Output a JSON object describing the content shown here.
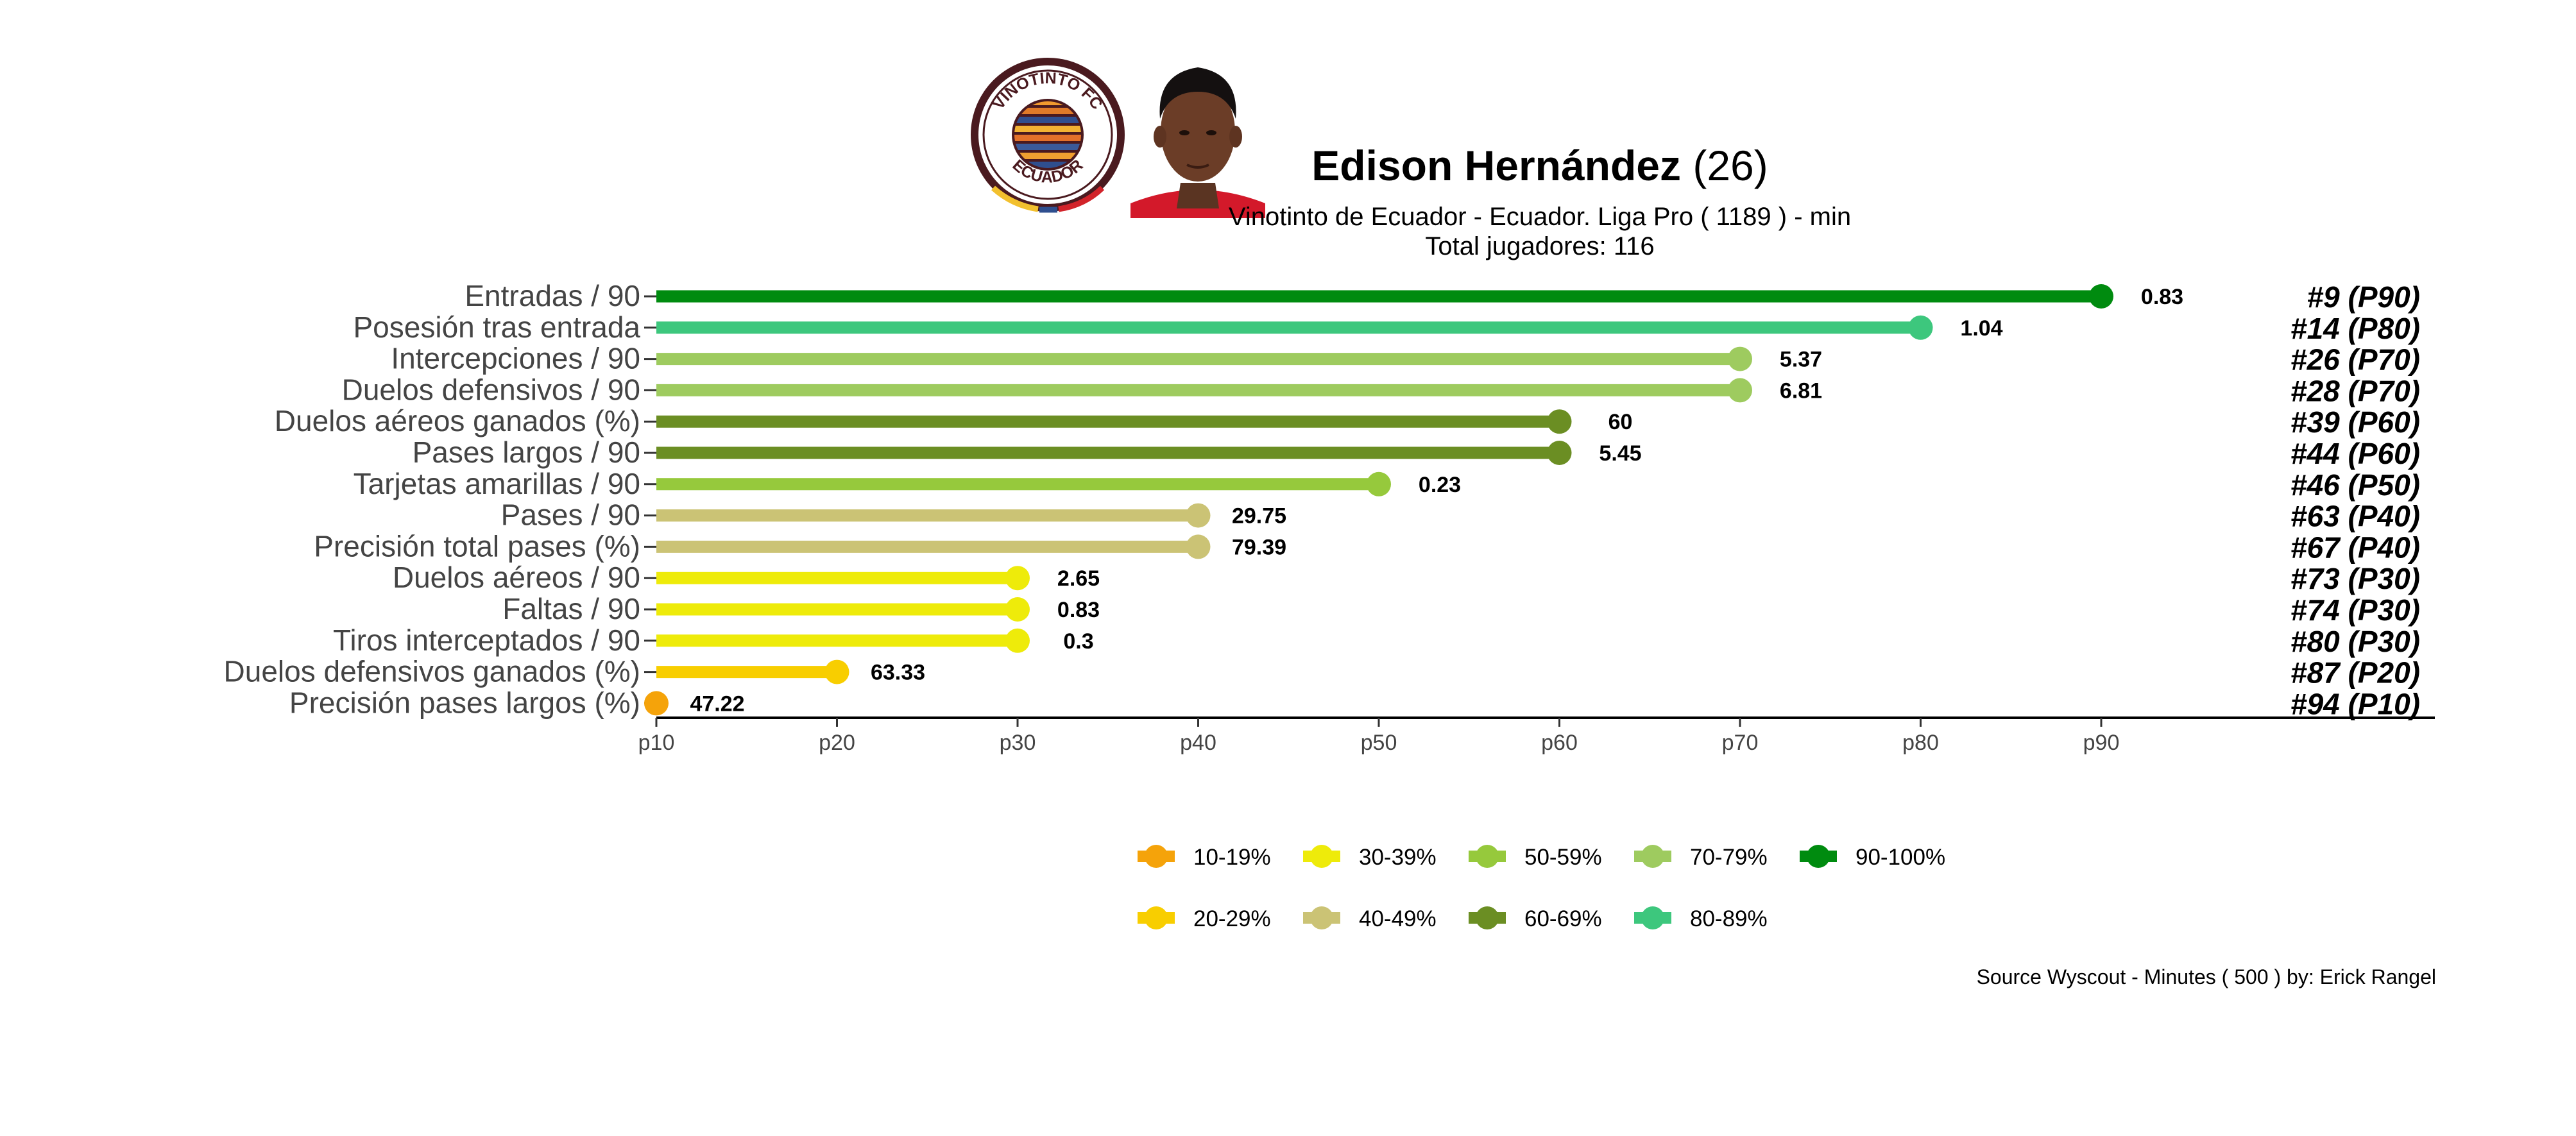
{
  "header": {
    "player_name": "Edison Hernández",
    "player_age": "(26)",
    "subtitle": "Vinotinto de Ecuador  -  Ecuador. Liga Pro  ( 1189 ) - min",
    "total_players": "Total jugadores:  116",
    "club_logo_icon": "vinotinto-fc-ecuador-crest",
    "club_logo_top_text": "VINOTINTO FC",
    "club_logo_bottom_text": "ECUADOR",
    "player_photo_icon": "player-portrait"
  },
  "footer": {
    "source": "Source Wyscout - Minutes ( 500 ) by: Erick Rangel"
  },
  "chart_data": {
    "type": "lollipop",
    "orientation": "horizontal",
    "x_ticks": [
      "p10",
      "p20",
      "p30",
      "p40",
      "p50",
      "p60",
      "p70",
      "p80",
      "p90"
    ],
    "xlim": [
      10,
      100
    ],
    "grid": false,
    "legend_position": "bottom",
    "metrics": [
      {
        "label": "Entradas / 90",
        "percentile": 90,
        "value": "0.83",
        "rank": "#9 (P90)",
        "band": "90-100%"
      },
      {
        "label": "Posesión tras entrada",
        "percentile": 80,
        "value": "1.04",
        "rank": "#14 (P80)",
        "band": "80-89%"
      },
      {
        "label": "Intercepciones / 90",
        "percentile": 70,
        "value": "5.37",
        "rank": "#26 (P70)",
        "band": "70-79%"
      },
      {
        "label": "Duelos defensivos / 90",
        "percentile": 70,
        "value": "6.81",
        "rank": "#28 (P70)",
        "band": "70-79%"
      },
      {
        "label": "Duelos aéreos ganados (%)",
        "percentile": 60,
        "value": "60",
        "rank": "#39 (P60)",
        "band": "60-69%"
      },
      {
        "label": "Pases largos / 90",
        "percentile": 60,
        "value": "5.45",
        "rank": "#44 (P60)",
        "band": "60-69%"
      },
      {
        "label": "Tarjetas amarillas / 90",
        "percentile": 50,
        "value": "0.23",
        "rank": "#46 (P50)",
        "band": "50-59%"
      },
      {
        "label": "Pases / 90",
        "percentile": 40,
        "value": "29.75",
        "rank": "#63 (P40)",
        "band": "40-49%"
      },
      {
        "label": "Precisión total pases (%)",
        "percentile": 40,
        "value": "79.39",
        "rank": "#67 (P40)",
        "band": "40-49%"
      },
      {
        "label": "Duelos aéreos / 90",
        "percentile": 30,
        "value": "2.65",
        "rank": "#73 (P30)",
        "band": "30-39%"
      },
      {
        "label": "Faltas / 90",
        "percentile": 30,
        "value": "0.83",
        "rank": "#74 (P30)",
        "band": "30-39%"
      },
      {
        "label": "Tiros interceptados / 90",
        "percentile": 30,
        "value": "0.3",
        "rank": "#80 (P30)",
        "band": "30-39%"
      },
      {
        "label": "Duelos defensivos ganados (%)",
        "percentile": 20,
        "value": "63.33",
        "rank": "#87 (P20)",
        "band": "20-29%"
      },
      {
        "label": "Precisión pases largos (%)",
        "percentile": 10,
        "value": "47.22",
        "rank": "#94 (P10)",
        "band": "10-19%"
      }
    ],
    "legend": [
      {
        "label": "10-19%",
        "color": "#F5A30A"
      },
      {
        "label": "20-29%",
        "color": "#F8CE00"
      },
      {
        "label": "30-39%",
        "color": "#EEEB0A"
      },
      {
        "label": "40-49%",
        "color": "#CBC375"
      },
      {
        "label": "50-59%",
        "color": "#96C93C"
      },
      {
        "label": "60-69%",
        "color": "#6B8E23"
      },
      {
        "label": "70-79%",
        "color": "#9ECB5F"
      },
      {
        "label": "80-89%",
        "color": "#3DC77D"
      },
      {
        "label": "90-100%",
        "color": "#008B0F"
      }
    ]
  }
}
